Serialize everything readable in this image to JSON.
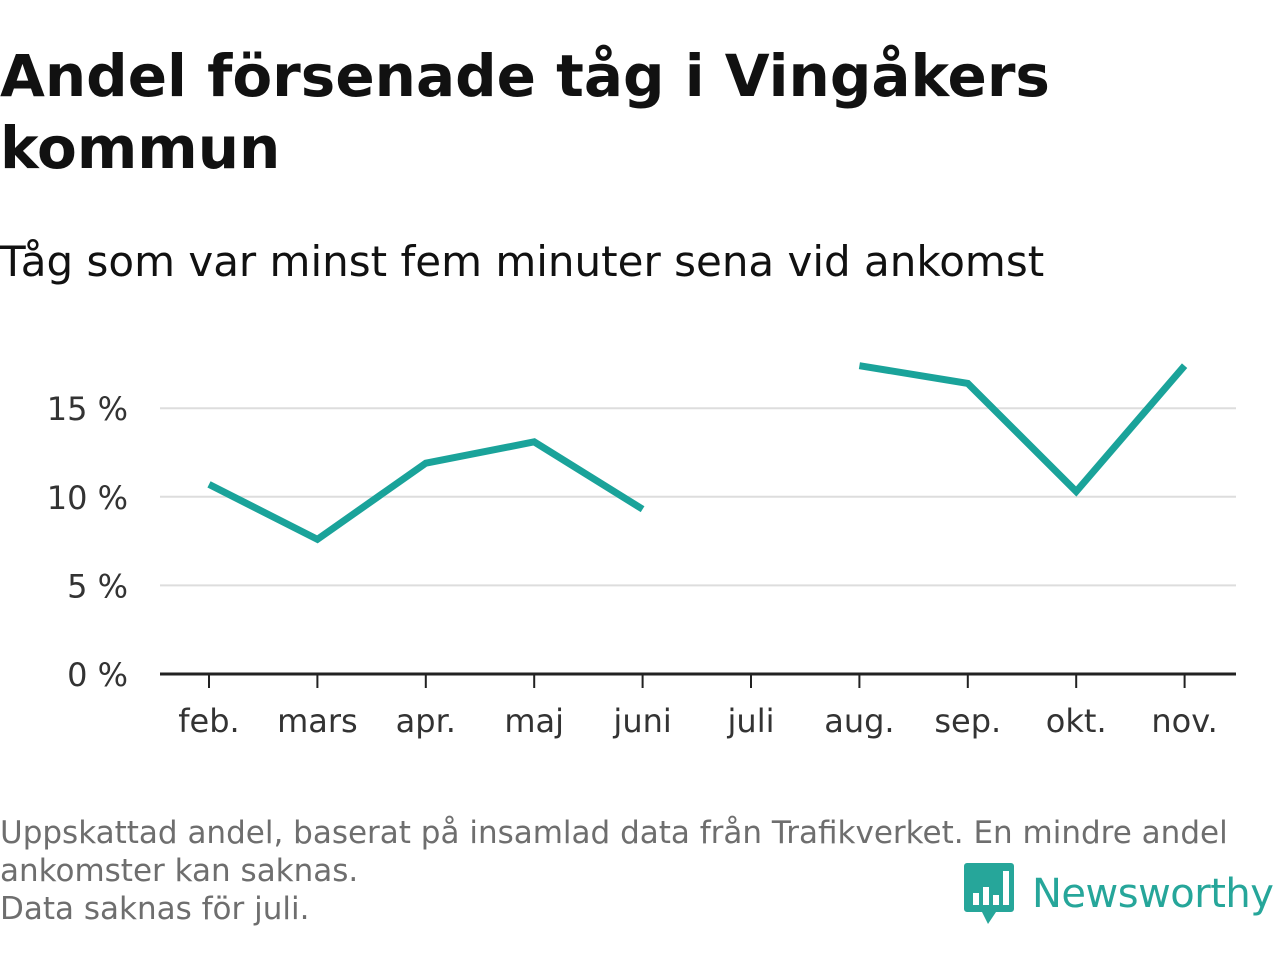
{
  "title": "Andel försenade tåg i Vingåkers kommun",
  "subtitle": "Tåg som var minst fem minuter sena vid ankomst",
  "footer": {
    "line1": "Uppskattad andel, baserat på insamlad data från Trafikverket. En mindre andel",
    "line2": "ankomster kan saknas.",
    "line3": "Data saknas för juli."
  },
  "brand": {
    "name": "Newsworthy",
    "icon": "bar-chart-speech-icon",
    "color": "#26a69a"
  },
  "colors": {
    "line": "#1aa39a",
    "grid": "#dddddd",
    "axis": "#222222",
    "tick_label": "#333333"
  },
  "chart_data": {
    "type": "line",
    "title": "Andel försenade tåg i Vingåkers kommun",
    "subtitle": "Tåg som var minst fem minuter sena vid ankomst",
    "xlabel": "",
    "ylabel": "",
    "categories": [
      "feb.",
      "mars",
      "apr.",
      "maj",
      "juni",
      "juli",
      "aug.",
      "sep.",
      "okt.",
      "nov."
    ],
    "series": [
      {
        "values": [
          10.7,
          7.6,
          11.9,
          13.1,
          9.3,
          null,
          17.4,
          16.4,
          10.3,
          17.4
        ]
      }
    ],
    "yticks": [
      0,
      5,
      10,
      15
    ],
    "ytick_labels": [
      "0 %",
      "5 %",
      "10 %",
      "15 %"
    ],
    "ylim": [
      0,
      18.5
    ],
    "grid": true,
    "legend": "none"
  }
}
